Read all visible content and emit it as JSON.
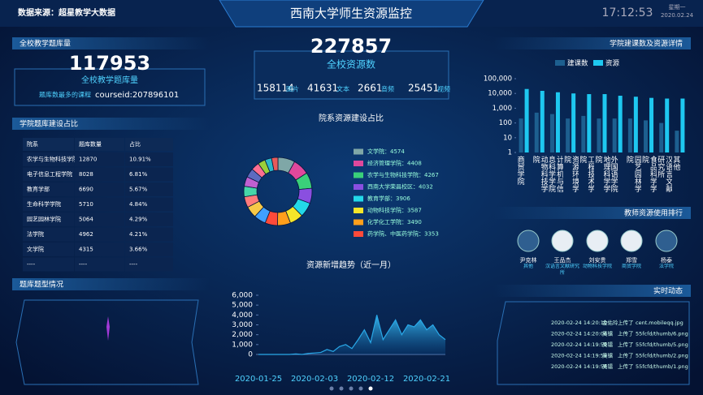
{
  "header": {
    "source": "数据来源：超星教学大数据",
    "title": "西南大学师生资源监控",
    "time": "17:12:53",
    "weekday": "星期一",
    "date": "2020.02.24"
  },
  "question_bank": {
    "title": "全校教学题库量",
    "total": 117953,
    "label": "全校教学题库量",
    "top_course_label": "题库数最多的课程",
    "top_course": "courseid:207896101"
  },
  "resources": {
    "total": 227857,
    "label": "全校资源数",
    "stats": [
      {
        "value": 158114,
        "label": "图片"
      },
      {
        "value": 41631,
        "label": "文本"
      },
      {
        "value": 2661,
        "label": "音频"
      },
      {
        "value": 25451,
        "label": "视频"
      }
    ]
  },
  "table": {
    "title": "学院题库建设占比",
    "header": [
      "院系",
      "题库数量",
      "占比"
    ],
    "rows": [
      [
        "农学与生物科技学院",
        "12870",
        "10.91%"
      ],
      [
        "电子信息工程学院",
        "8028",
        "6.81%"
      ],
      [
        "教育学部",
        "6690",
        "5.67%"
      ],
      [
        "生命科学学院",
        "5710",
        "4.84%"
      ],
      [
        "园艺园林学院",
        "5064",
        "4.29%"
      ],
      [
        "法学院",
        "4962",
        "4.21%"
      ],
      [
        "文学院",
        "4315",
        "3.66%"
      ],
      [
        "----",
        "----",
        "----"
      ]
    ]
  },
  "question_types": {
    "title": "题库题型情况"
  },
  "teachers": {
    "title": "教师资源使用排行",
    "items": [
      {
        "name": "尹克林",
        "dept": "其他"
      },
      {
        "name": "王品杰",
        "dept": "汉语言文献研究所"
      },
      {
        "name": "刘安贵",
        "dept": "动物科技学院"
      },
      {
        "name": "郑雪",
        "dept": "商贸学院"
      },
      {
        "name": "杨泰",
        "dept": "法学院"
      }
    ]
  },
  "activity": {
    "title": "实时动态",
    "items": [
      {
        "time": "2020-02-24 14:20:10",
        "user": "金佑玲",
        "action": "上传了",
        "file": "cent.mobileqq.jpg"
      },
      {
        "time": "2020-02-24 14:20:06",
        "user": "吴镭",
        "action": "上传了",
        "file": "55fcfd/thumb/6.png"
      },
      {
        "time": "2020-02-24 14:19:59",
        "user": "吴镭",
        "action": "上传了",
        "file": "55fcfd/thumb/5.png"
      },
      {
        "time": "2020-02-24 14:19:59",
        "user": "吴镭",
        "action": "上传了",
        "file": "55fcfd/thumb/2.png"
      },
      {
        "time": "2020-02-24 14:19:56",
        "user": "吴镭",
        "action": "上传了",
        "file": "55fcfd/thumb/1.png"
      }
    ]
  },
  "chart_data": [
    {
      "type": "bar",
      "title": "学院建课数及资源详情",
      "log": true,
      "categories": [
        "商贸学院",
        "动物科技学院",
        "计算机与信息科学学院",
        "资源环境学院",
        "工程技术学院",
        "地理科学学院",
        "外国语学院",
        "园艺园林学院",
        "食品科学学院",
        "汉语言文献研究所",
        "其他"
      ],
      "series": [
        {
          "name": "建课数",
          "color": "#1d5f8f",
          "values": [
            200,
            500,
            400,
            200,
            300,
            200,
            200,
            200,
            150,
            100,
            30
          ]
        },
        {
          "name": "资源",
          "color": "#1ec8f0",
          "values": [
            20000,
            15000,
            12000,
            10000,
            9000,
            9000,
            7000,
            6000,
            5000,
            4500,
            4500
          ]
        }
      ],
      "ylim": [
        1,
        100000
      ],
      "yticks": [
        1,
        10,
        100,
        {
          "value": 1000,
          "label": "1,000"
        },
        {
          "value": 10000,
          "label": "10,000"
        },
        {
          "value": 100000,
          "label": "100,000"
        }
      ]
    },
    {
      "type": "donut",
      "title": "院系资源建设占比",
      "categories": [
        "文学院：4574",
        "经济管理学院：4408",
        "农学与生物科技学院：4267",
        "西南大学荣昌校区：4032",
        "教育学部：3906",
        "动物科技学院：3587",
        "化学化工学院：3490",
        "药学院、中医药学院：3353",
        null,
        null,
        null,
        null,
        null,
        null,
        null,
        null,
        null,
        null
      ],
      "values": [
        4574,
        4408,
        4267,
        4032,
        3906,
        3587,
        3490,
        3353,
        3200,
        3100,
        2900,
        2800,
        2600,
        2400,
        2200,
        2000,
        1800,
        1700
      ],
      "colors": [
        "#7fa7a7",
        "#e0489c",
        "#3ad07a",
        "#8a4fe0",
        "#23d8e8",
        "#f5e52a",
        "#ff9f1c",
        "#ff4a3a",
        "#3fa0ff",
        "#f7c948",
        "#ff7b7b",
        "#47d6a8",
        "#c060d0",
        "#5c6bc0",
        "#ff6f91",
        "#9ad03a",
        "#2bb7c9",
        "#e85a5a"
      ]
    },
    {
      "type": "area",
      "title": "资源新增趋势（近一月）",
      "color": "#29a8e8",
      "x": [
        "2020-01-25",
        "2020-01-26",
        "2020-01-27",
        "2020-01-28",
        "2020-01-29",
        "2020-01-30",
        "2020-01-31",
        "2020-02-01",
        "2020-02-02",
        "2020-02-03",
        "2020-02-04",
        "2020-02-05",
        "2020-02-06",
        "2020-02-07",
        "2020-02-08",
        "2020-02-09",
        "2020-02-10",
        "2020-02-11",
        "2020-02-12",
        "2020-02-13",
        "2020-02-14",
        "2020-02-15",
        "2020-02-16",
        "2020-02-17",
        "2020-02-18",
        "2020-02-19",
        "2020-02-20",
        "2020-02-21",
        "2020-02-22",
        "2020-02-23",
        "2020-02-24"
      ],
      "values": [
        0,
        0,
        0,
        0,
        0,
        0,
        50,
        0,
        100,
        150,
        200,
        500,
        300,
        800,
        1000,
        600,
        1500,
        2500,
        1200,
        4000,
        1500,
        2500,
        3500,
        2000,
        3000,
        2800,
        3500,
        2500,
        3000,
        2000,
        1500
      ],
      "xticks": [
        "2020-01-25",
        "2020-02-03",
        "2020-02-12",
        "2020-02-21"
      ],
      "ylim": [
        0,
        6000
      ],
      "yticks": [
        0,
        {
          "value": 1000,
          "label": "1,000"
        },
        {
          "value": 2000,
          "label": "2,000"
        },
        {
          "value": 3000,
          "label": "3,000"
        },
        {
          "value": 4000,
          "label": "4,000"
        },
        {
          "value": 5000,
          "label": "5,000"
        },
        {
          "value": 6000,
          "label": "6,000"
        }
      ]
    }
  ]
}
